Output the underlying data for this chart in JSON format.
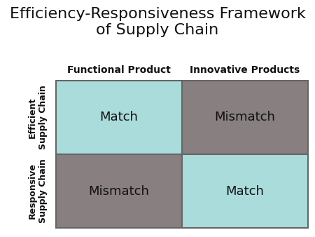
{
  "title": "Efficiency-Responsiveness Framework\nof Supply Chain",
  "title_fontsize": 16,
  "col_labels": [
    "Functional Product",
    "Innovative Products"
  ],
  "col_label_fontsize": 10,
  "col_label_fontweight": "bold",
  "row_labels": [
    "Efficient\nSupply Chain",
    "Responsive\nSupply Chain"
  ],
  "row_label_fontsize": 9,
  "row_label_fontweight": "bold",
  "cell_texts": [
    [
      "Match",
      "Mismatch"
    ],
    [
      "Mismatch",
      "Match"
    ]
  ],
  "cell_colors": [
    [
      "#aadcdc",
      "#888080"
    ],
    [
      "#888080",
      "#aadcdc"
    ]
  ],
  "cell_text_fontsize": 13,
  "background_color": "#ffffff",
  "border_color": "#666666",
  "border_linewidth": 1.5
}
